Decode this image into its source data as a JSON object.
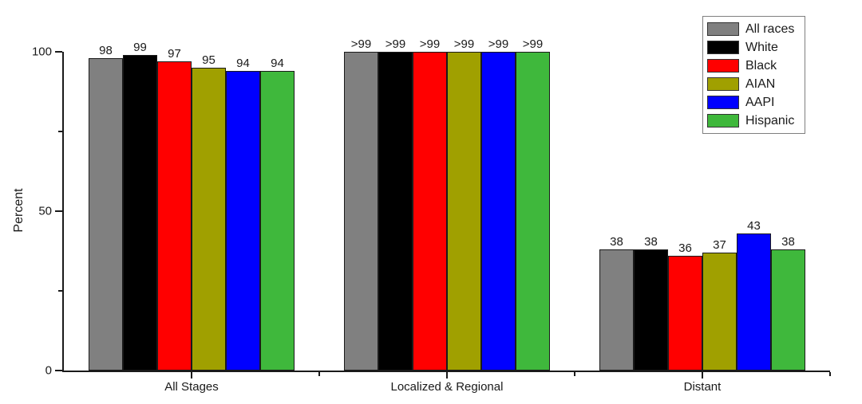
{
  "chart_data": {
    "type": "bar",
    "title": "",
    "xlabel": "",
    "ylabel": "Percent",
    "ylim": [
      0,
      100
    ],
    "grid": false,
    "axis_color": "#1a1a1a",
    "categories": [
      "All Stages",
      "Localized & Regional",
      "Distant"
    ],
    "series": [
      {
        "name": "All races",
        "color": "#808080",
        "values": [
          98,
          100,
          38
        ],
        "labels": [
          "98",
          ">99",
          "38"
        ]
      },
      {
        "name": "White",
        "color": "#000000",
        "values": [
          99,
          100,
          38
        ],
        "labels": [
          "99",
          ">99",
          "38"
        ]
      },
      {
        "name": "Black",
        "color": "#FF0000",
        "values": [
          97,
          100,
          36
        ],
        "labels": [
          "97",
          ">99",
          "36"
        ]
      },
      {
        "name": "AIAN",
        "color": "#A0A000",
        "values": [
          95,
          100,
          37
        ],
        "labels": [
          "95",
          ">99",
          "37"
        ]
      },
      {
        "name": "AAPI",
        "color": "#0000FF",
        "values": [
          94,
          100,
          43
        ],
        "labels": [
          "94",
          ">99",
          "43"
        ]
      },
      {
        "name": "Hispanic",
        "color": "#3FB83C",
        "values": [
          94,
          100,
          38
        ],
        "labels": [
          "94",
          ">99",
          "38"
        ]
      }
    ],
    "y_axis": {
      "major_ticks": [
        0,
        50,
        100
      ],
      "major_tick_labels": [
        "0",
        "50",
        "100"
      ],
      "minor_ticks": [
        25,
        75
      ]
    },
    "x_axis": {
      "major_ticks_at": "category-centers",
      "minor_ticks_at": "category-boundaries"
    },
    "legend": {
      "position": "top-right",
      "entries": [
        "All races",
        "White",
        "Black",
        "AIAN",
        "AAPI",
        "Hispanic"
      ]
    }
  }
}
